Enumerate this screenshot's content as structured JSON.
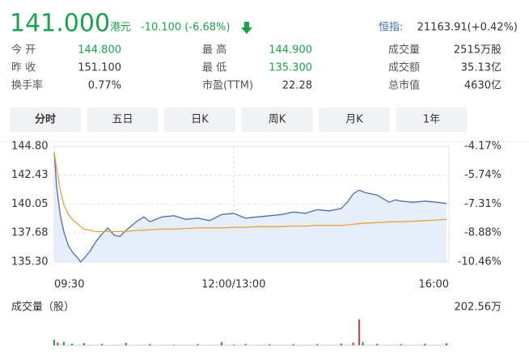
{
  "header": {
    "price": "141.000",
    "currency": "港元",
    "change": "-10.100 (-6.68%)",
    "index_label": "恒指:",
    "index_value": "21163.91(+0.42%)"
  },
  "stats": [
    {
      "label": "今 开",
      "value": "144.800",
      "color": "#1aa34a"
    },
    {
      "label": "最 高",
      "value": "144.900",
      "color": "#1aa34a"
    },
    {
      "label": "成交量",
      "value": "2515万股"
    },
    {
      "label": "昨 收",
      "value": "151.100"
    },
    {
      "label": "最 低",
      "value": "135.300",
      "color": "#1aa34a"
    },
    {
      "label": "成交额",
      "value": "35.13亿"
    },
    {
      "label": "换手率",
      "value": "0.77%"
    },
    {
      "label": "市盈(TTM)",
      "value": "22.28"
    },
    {
      "label": "总市值",
      "value": "4630亿"
    }
  ],
  "tabs": [
    {
      "label": "分时",
      "selected": true
    },
    {
      "label": "五日"
    },
    {
      "label": "日K"
    },
    {
      "label": "周K"
    },
    {
      "label": "月K"
    },
    {
      "label": "1年"
    }
  ],
  "chart_data": [
    {
      "type": "line",
      "x": [
        0,
        2,
        5,
        8,
        12,
        16,
        20,
        22,
        25,
        30,
        35,
        40,
        45,
        50,
        55,
        60,
        65,
        70,
        75,
        80,
        90,
        100,
        110,
        120,
        130,
        140,
        150,
        160,
        170,
        180,
        190,
        200,
        210,
        220,
        230,
        240,
        245,
        250,
        255,
        260,
        265,
        270,
        275,
        280,
        285,
        290,
        300,
        310,
        320,
        328
      ],
      "xlim": [
        0,
        330
      ],
      "xticks": [
        {
          "value": 0,
          "label": "09:30"
        },
        {
          "value": 150,
          "label": "12:00/13:00"
        },
        {
          "value": 330,
          "label": "16:00"
        }
      ],
      "ylim": [
        135.3,
        144.8
      ],
      "yticks": [
        {
          "value": 144.8,
          "label": "144.80"
        },
        142.43,
        140.05,
        137.68,
        {
          "value": 135.3,
          "label": "135.30"
        }
      ],
      "y2lim": [
        -10.46,
        -4.17
      ],
      "y2ticks": [
        {
          "value": -4.17,
          "label": "-4.17%"
        },
        {
          "value": -5.74,
          "label": "-5.74%"
        },
        {
          "value": -7.31,
          "label": "-7.31%"
        },
        {
          "value": -8.88,
          "label": "-8.88%"
        },
        {
          "value": -10.46,
          "label": "-10.46%"
        }
      ],
      "grid": true,
      "series": [
        {
          "color": "#4a6fb5",
          "fill": "#e6eefa",
          "values": [
            144.3,
            141.5,
            139.2,
            137.8,
            136.6,
            136.0,
            135.6,
            135.3,
            135.6,
            136.2,
            137.0,
            137.6,
            138.1,
            137.5,
            137.4,
            137.9,
            138.3,
            138.7,
            139.0,
            138.6,
            139.0,
            139.1,
            138.8,
            138.9,
            138.7,
            139.2,
            139.3,
            138.9,
            139.0,
            139.1,
            139.2,
            139.4,
            139.3,
            139.6,
            139.5,
            139.7,
            140.2,
            140.9,
            141.2,
            141.0,
            140.9,
            140.8,
            140.5,
            140.2,
            140.4,
            140.3,
            140.2,
            140.3,
            140.2,
            140.1
          ]
        },
        {
          "color": "#e6a23c",
          "values": [
            144.3,
            143.0,
            141.2,
            140.0,
            139.2,
            138.7,
            138.4,
            138.2,
            138.0,
            137.9,
            137.8,
            137.8,
            137.8,
            137.8,
            137.8,
            137.8,
            137.85,
            137.9,
            137.9,
            137.95,
            138.0,
            138.0,
            138.05,
            138.1,
            138.1,
            138.1,
            138.15,
            138.15,
            138.2,
            138.2,
            138.2,
            138.25,
            138.25,
            138.3,
            138.3,
            138.3,
            138.35,
            138.4,
            138.45,
            138.5,
            138.5,
            138.55,
            138.55,
            138.6,
            138.6,
            138.6,
            138.65,
            138.7,
            138.75,
            138.8
          ]
        }
      ]
    },
    {
      "type": "bar",
      "title": "成交量（股）",
      "xlim": [
        0,
        330
      ],
      "ylim": [
        0,
        202.56
      ],
      "yticks": [
        {
          "value": 202.56,
          "label": "202.56万"
        }
      ],
      "x": [
        0,
        3,
        8,
        15,
        25,
        40,
        60,
        80,
        100,
        120,
        140,
        150,
        160,
        180,
        200,
        220,
        240,
        250,
        255,
        258,
        270,
        290,
        310,
        328
      ],
      "values": [
        40,
        20,
        25,
        12,
        15,
        10,
        18,
        8,
        6,
        8,
        22,
        5,
        10,
        7,
        8,
        9,
        12,
        20,
        185,
        25,
        10,
        8,
        12,
        14
      ],
      "colors": [
        "#1aa34a",
        "#e0393e",
        "#1aa34a",
        "#1aa34a",
        "#e0393e",
        "#1aa34a",
        "#e0393e",
        "#1aa34a",
        "#999999",
        "#e0393e",
        "#e0393e",
        "#1aa34a",
        "#e0393e",
        "#1aa34a",
        "#e0393e",
        "#1aa34a",
        "#e0393e",
        "#e0393e",
        "#e0393e",
        "#1aa34a",
        "#1aa34a",
        "#e0393e",
        "#1aa34a",
        "#e0393e"
      ]
    }
  ]
}
